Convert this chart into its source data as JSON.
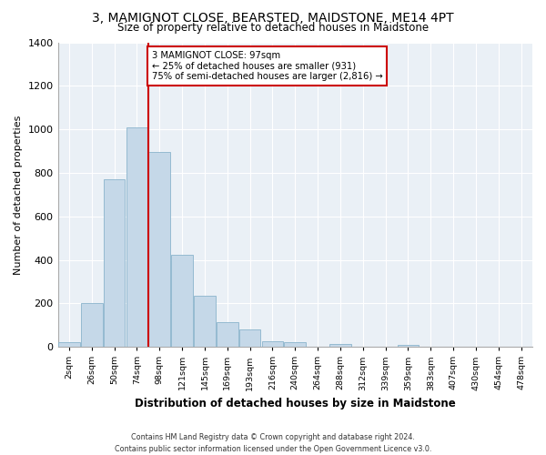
{
  "title": "3, MAMIGNOT CLOSE, BEARSTED, MAIDSTONE, ME14 4PT",
  "subtitle": "Size of property relative to detached houses in Maidstone",
  "xlabel": "Distribution of detached houses by size in Maidstone",
  "ylabel": "Number of detached properties",
  "bar_color": "#c5d8e8",
  "bar_edge_color": "#8ab4cc",
  "background_color": "#eaf0f6",
  "annotation_text": "3 MAMIGNOT CLOSE: 97sqm\n← 25% of detached houses are smaller (931)\n75% of semi-detached houses are larger (2,816) →",
  "vline_x": 4,
  "vline_color": "#cc0000",
  "categories": [
    "2sqm",
    "26sqm",
    "50sqm",
    "74sqm",
    "98sqm",
    "121sqm",
    "145sqm",
    "169sqm",
    "193sqm",
    "216sqm",
    "240sqm",
    "264sqm",
    "288sqm",
    "312sqm",
    "339sqm",
    "359sqm",
    "383sqm",
    "407sqm",
    "430sqm",
    "454sqm",
    "478sqm"
  ],
  "values": [
    20,
    200,
    770,
    1010,
    895,
    425,
    235,
    115,
    80,
    25,
    20,
    0,
    15,
    0,
    0,
    10,
    0,
    0,
    0,
    0,
    0
  ],
  "ylim": [
    0,
    1400
  ],
  "yticks": [
    0,
    200,
    400,
    600,
    800,
    1000,
    1200,
    1400
  ],
  "footnote": "Contains HM Land Registry data © Crown copyright and database right 2024.\nContains public sector information licensed under the Open Government Licence v3.0.",
  "annotation_box_color": "#ffffff",
  "annotation_box_edge": "#cc0000",
  "property_bar_index": 4
}
